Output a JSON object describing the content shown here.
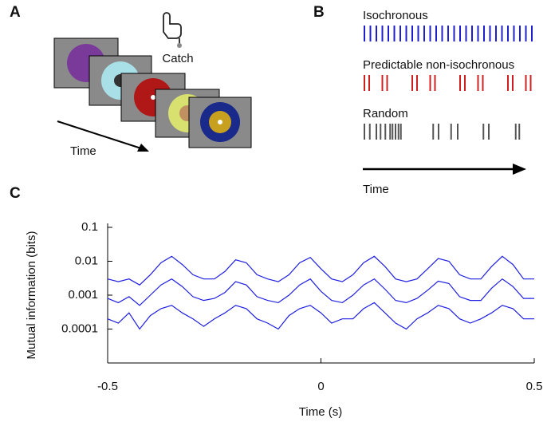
{
  "panels": {
    "a": "A",
    "b": "B",
    "c": "C"
  },
  "illustration": {
    "catch": "Catch",
    "time": "Time"
  },
  "chart_data": [
    {
      "type": "raster",
      "xlim": [
        0,
        28
      ],
      "xlabel": "Time",
      "series": [
        {
          "name": "Isochronous",
          "color": "#1f1fd0",
          "values": [
            0,
            1,
            2,
            3,
            4,
            5,
            6,
            7,
            8,
            9,
            10,
            11,
            12,
            13,
            14,
            15,
            16,
            17,
            18,
            19,
            20,
            21,
            22,
            23,
            24,
            25,
            26,
            27,
            28
          ]
        },
        {
          "name": "Predictable non-isochronous",
          "color": "#d01f1f",
          "values": [
            0,
            0.8,
            3,
            3.8,
            8,
            8.8,
            11,
            11.8,
            16,
            16.8,
            19,
            19.8,
            24,
            24.8,
            27,
            27.8
          ]
        },
        {
          "name": "Random",
          "color": "#555555",
          "values": [
            0,
            0.9,
            2,
            2.7,
            3.5,
            4.3,
            4.7,
            5.2,
            5.7,
            6.1,
            11.5,
            12.4,
            14.5,
            15.6,
            19.9,
            20.8,
            25.3,
            25.9
          ]
        }
      ]
    },
    {
      "type": "line",
      "xlabel": "Time (s)",
      "ylabel": "Mutual information (bits)",
      "ylog": true,
      "xlim": [
        -0.5,
        0.5
      ],
      "ylim": [
        1e-05,
        0.1
      ],
      "xticks": [
        -0.5,
        0,
        0.5
      ],
      "yticks": [
        0.1,
        0.01,
        0.001,
        0.0001
      ],
      "x": [
        -0.5,
        -0.475,
        -0.45,
        -0.425,
        -0.4,
        -0.375,
        -0.35,
        -0.325,
        -0.3,
        -0.275,
        -0.25,
        -0.225,
        -0.2,
        -0.175,
        -0.15,
        -0.125,
        -0.1,
        -0.075,
        -0.05,
        -0.025,
        0,
        0.025,
        0.05,
        0.075,
        0.1,
        0.125,
        0.15,
        0.175,
        0.2,
        0.225,
        0.25,
        0.275,
        0.3,
        0.325,
        0.35,
        0.375,
        0.4,
        0.425,
        0.45,
        0.475,
        0.5
      ],
      "series": [
        {
          "color": "#1f1fe0",
          "values": [
            0.003,
            0.0025,
            0.003,
            0.002,
            0.004,
            0.009,
            0.014,
            0.008,
            0.004,
            0.003,
            0.003,
            0.005,
            0.011,
            0.009,
            0.004,
            0.003,
            0.0025,
            0.004,
            0.009,
            0.013,
            0.006,
            0.003,
            0.0025,
            0.004,
            0.009,
            0.014,
            0.007,
            0.003,
            0.0025,
            0.003,
            0.006,
            0.012,
            0.01,
            0.004,
            0.003,
            0.003,
            0.007,
            0.014,
            0.008,
            0.003,
            0.003
          ]
        },
        {
          "color": "#1f1fe0",
          "values": [
            0.0008,
            0.0006,
            0.0009,
            0.0005,
            0.001,
            0.002,
            0.003,
            0.0018,
            0.0009,
            0.0007,
            0.0008,
            0.0012,
            0.0025,
            0.002,
            0.0009,
            0.0007,
            0.0006,
            0.001,
            0.002,
            0.003,
            0.0013,
            0.0007,
            0.0006,
            0.001,
            0.002,
            0.003,
            0.0015,
            0.0007,
            0.0006,
            0.0008,
            0.0014,
            0.0026,
            0.0022,
            0.0009,
            0.0007,
            0.0007,
            0.0016,
            0.003,
            0.0018,
            0.0008,
            0.0008
          ]
        },
        {
          "color": "#1f1fe0",
          "values": [
            0.0002,
            0.00015,
            0.0003,
            0.0001,
            0.00025,
            0.0004,
            0.0005,
            0.0003,
            0.0002,
            0.00012,
            0.0002,
            0.0003,
            0.0005,
            0.0004,
            0.0002,
            0.00015,
            0.0001,
            0.00025,
            0.0004,
            0.0005,
            0.0003,
            0.00015,
            0.0002,
            0.0002,
            0.0004,
            0.0006,
            0.0003,
            0.00015,
            0.0001,
            0.0002,
            0.0003,
            0.0005,
            0.0004,
            0.0002,
            0.00015,
            0.0002,
            0.0003,
            0.0005,
            0.0004,
            0.0002,
            0.0002
          ]
        }
      ]
    }
  ]
}
